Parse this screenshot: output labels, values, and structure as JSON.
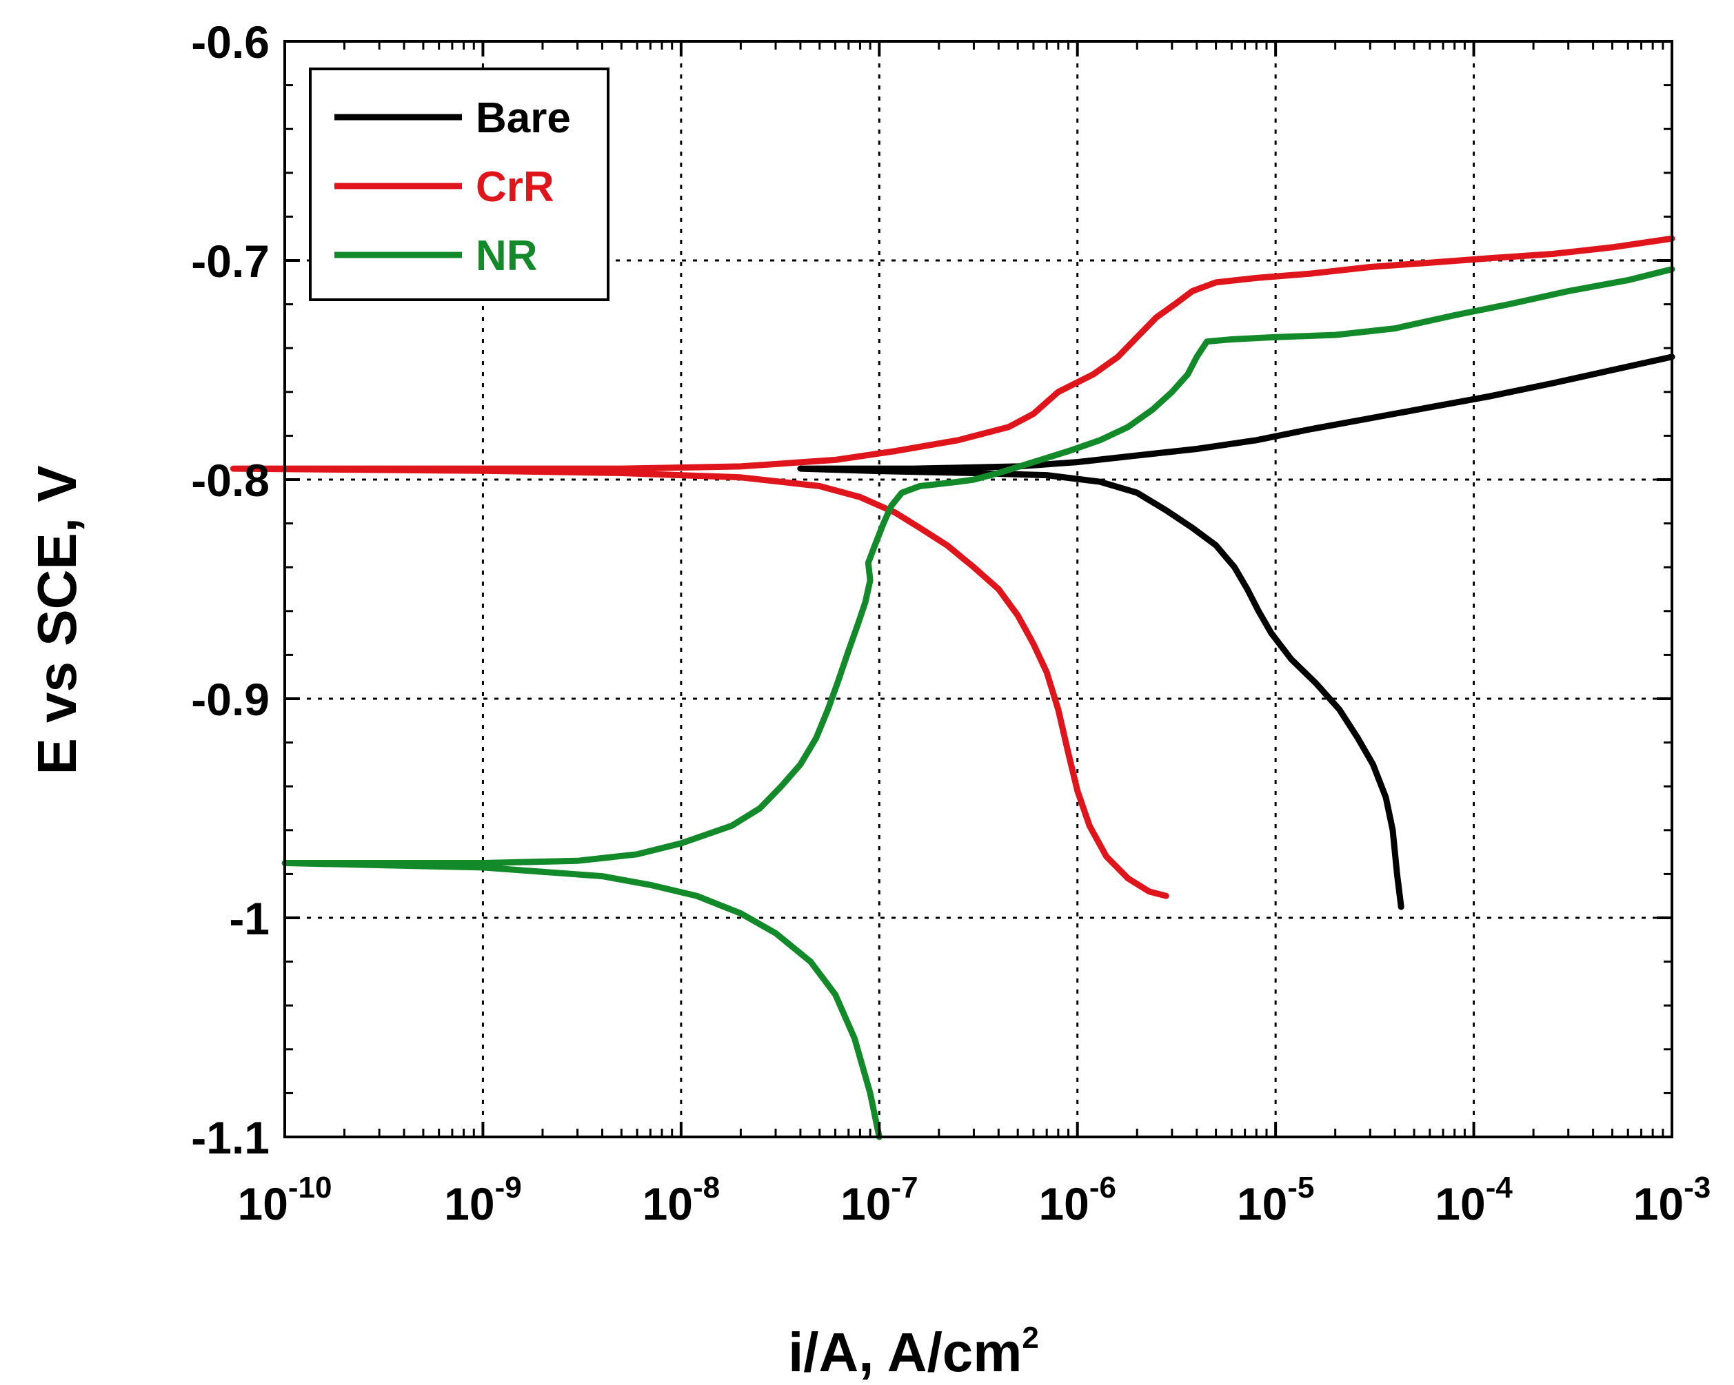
{
  "chart_data": {
    "type": "line",
    "title": "",
    "xlabel": "i/A, A/cm",
    "xlabel_superscript": "2",
    "ylabel": "E vs SCE, V",
    "x_scale": "log",
    "xlim": [
      1e-10,
      0.001
    ],
    "ylim": [
      -1.1,
      -0.6
    ],
    "grid": true,
    "legend_position": "top-left",
    "x_ticks": [
      {
        "value": 1e-10,
        "base": "10",
        "exp": "-10"
      },
      {
        "value": 1e-09,
        "base": "10",
        "exp": "-9"
      },
      {
        "value": 1e-08,
        "base": "10",
        "exp": "-8"
      },
      {
        "value": 1e-07,
        "base": "10",
        "exp": "-7"
      },
      {
        "value": 1e-06,
        "base": "10",
        "exp": "-6"
      },
      {
        "value": 1e-05,
        "base": "10",
        "exp": "-5"
      },
      {
        "value": 0.0001,
        "base": "10",
        "exp": "-4"
      },
      {
        "value": 0.001,
        "base": "10",
        "exp": "-3"
      }
    ],
    "y_ticks": [
      {
        "value": -0.6,
        "label": "-0.6"
      },
      {
        "value": -0.7,
        "label": "-0.7"
      },
      {
        "value": -0.8,
        "label": "-0.8"
      },
      {
        "value": -0.9,
        "label": "-0.9"
      },
      {
        "value": -1.0,
        "label": "-1"
      },
      {
        "value": -1.1,
        "label": "-1.1"
      }
    ],
    "series": [
      {
        "name": "Bare",
        "color": "#000000",
        "points": [
          [
            4.3e-05,
            -0.995
          ],
          [
            4.1e-05,
            -0.98
          ],
          [
            3.9e-05,
            -0.96
          ],
          [
            3.6e-05,
            -0.945
          ],
          [
            3.1e-05,
            -0.93
          ],
          [
            2.6e-05,
            -0.918
          ],
          [
            2.1e-05,
            -0.905
          ],
          [
            1.6e-05,
            -0.893
          ],
          [
            1.2e-05,
            -0.882
          ],
          [
            9.5e-06,
            -0.87
          ],
          [
            8.2e-06,
            -0.86
          ],
          [
            7.2e-06,
            -0.85
          ],
          [
            6.2e-06,
            -0.84
          ],
          [
            5e-06,
            -0.83
          ],
          [
            3.8e-06,
            -0.822
          ],
          [
            2.8e-06,
            -0.814
          ],
          [
            2e-06,
            -0.806
          ],
          [
            1.3e-06,
            -0.801
          ],
          [
            7e-07,
            -0.798
          ],
          [
            3e-07,
            -0.797
          ],
          [
            9e-08,
            -0.796
          ],
          [
            4e-08,
            -0.795
          ],
          [
            1.5e-07,
            -0.795
          ],
          [
            5e-07,
            -0.794
          ],
          [
            1e-06,
            -0.792
          ],
          [
            2e-06,
            -0.789
          ],
          [
            4e-06,
            -0.786
          ],
          [
            8e-06,
            -0.782
          ],
          [
            1.5e-05,
            -0.777
          ],
          [
            3e-05,
            -0.772
          ],
          [
            6e-05,
            -0.767
          ],
          [
            0.00012,
            -0.762
          ],
          [
            0.00025,
            -0.756
          ],
          [
            0.0005,
            -0.75
          ],
          [
            0.001,
            -0.744
          ]
        ]
      },
      {
        "name": "CrR",
        "color": "#e0151b",
        "points": [
          [
            2.8e-06,
            -0.99
          ],
          [
            2.3e-06,
            -0.988
          ],
          [
            1.8e-06,
            -0.982
          ],
          [
            1.4e-06,
            -0.972
          ],
          [
            1.15e-06,
            -0.958
          ],
          [
            1e-06,
            -0.942
          ],
          [
            9e-07,
            -0.925
          ],
          [
            8e-07,
            -0.905
          ],
          [
            7e-07,
            -0.888
          ],
          [
            6e-07,
            -0.875
          ],
          [
            5e-07,
            -0.862
          ],
          [
            4e-07,
            -0.85
          ],
          [
            3e-07,
            -0.84
          ],
          [
            2.2e-07,
            -0.83
          ],
          [
            1.6e-07,
            -0.822
          ],
          [
            1.2e-07,
            -0.815
          ],
          [
            8e-08,
            -0.808
          ],
          [
            5e-08,
            -0.803
          ],
          [
            2e-08,
            -0.799
          ],
          [
            5e-09,
            -0.797
          ],
          [
            1e-09,
            -0.796
          ],
          [
            5.5e-11,
            -0.795
          ],
          [
            5e-10,
            -0.795
          ],
          [
            5e-09,
            -0.795
          ],
          [
            2e-08,
            -0.794
          ],
          [
            6e-08,
            -0.791
          ],
          [
            1.2e-07,
            -0.787
          ],
          [
            2.5e-07,
            -0.782
          ],
          [
            4.5e-07,
            -0.776
          ],
          [
            6e-07,
            -0.77
          ],
          [
            8e-07,
            -0.76
          ],
          [
            1.2e-06,
            -0.752
          ],
          [
            1.6e-06,
            -0.744
          ],
          [
            2e-06,
            -0.735
          ],
          [
            2.5e-06,
            -0.726
          ],
          [
            3.1e-06,
            -0.72
          ],
          [
            3.8e-06,
            -0.714
          ],
          [
            5e-06,
            -0.71
          ],
          [
            8e-06,
            -0.708
          ],
          [
            1.5e-05,
            -0.706
          ],
          [
            3e-05,
            -0.703
          ],
          [
            6e-05,
            -0.701
          ],
          [
            0.00012,
            -0.699
          ],
          [
            0.00025,
            -0.697
          ],
          [
            0.0005,
            -0.694
          ],
          [
            0.001,
            -0.69
          ]
        ]
      },
      {
        "name": "NR",
        "color": "#138a2a",
        "points": [
          [
            1e-07,
            -1.1
          ],
          [
            9e-08,
            -1.08
          ],
          [
            7.5e-08,
            -1.055
          ],
          [
            6e-08,
            -1.035
          ],
          [
            4.5e-08,
            -1.02
          ],
          [
            3e-08,
            -1.007
          ],
          [
            2e-08,
            -0.998
          ],
          [
            1.2e-08,
            -0.99
          ],
          [
            7e-09,
            -0.985
          ],
          [
            4e-09,
            -0.981
          ],
          [
            2e-09,
            -0.979
          ],
          [
            1e-09,
            -0.977
          ],
          [
            1e-10,
            -0.975
          ],
          [
            1e-09,
            -0.975
          ],
          [
            3e-09,
            -0.974
          ],
          [
            6e-09,
            -0.971
          ],
          [
            1e-08,
            -0.966
          ],
          [
            1.8e-08,
            -0.958
          ],
          [
            2.5e-08,
            -0.95
          ],
          [
            3.2e-08,
            -0.94
          ],
          [
            4e-08,
            -0.93
          ],
          [
            4.8e-08,
            -0.918
          ],
          [
            5.5e-08,
            -0.905
          ],
          [
            6.2e-08,
            -0.892
          ],
          [
            7e-08,
            -0.878
          ],
          [
            7.8e-08,
            -0.866
          ],
          [
            8.5e-08,
            -0.856
          ],
          [
            9e-08,
            -0.846
          ],
          [
            8.8e-08,
            -0.838
          ],
          [
            9.5e-08,
            -0.83
          ],
          [
            1.05e-07,
            -0.82
          ],
          [
            1.15e-07,
            -0.812
          ],
          [
            1.3e-07,
            -0.806
          ],
          [
            1.6e-07,
            -0.803
          ],
          [
            2e-07,
            -0.802
          ],
          [
            2.5e-07,
            -0.801
          ],
          [
            3e-07,
            -0.8
          ],
          [
            4e-07,
            -0.797
          ],
          [
            6e-07,
            -0.792
          ],
          [
            9e-07,
            -0.787
          ],
          [
            1.3e-06,
            -0.782
          ],
          [
            1.8e-06,
            -0.776
          ],
          [
            2.4e-06,
            -0.768
          ],
          [
            3e-06,
            -0.76
          ],
          [
            3.6e-06,
            -0.752
          ],
          [
            4e-06,
            -0.744
          ],
          [
            4.5e-06,
            -0.737
          ],
          [
            6e-06,
            -0.736
          ],
          [
            1e-05,
            -0.735
          ],
          [
            2e-05,
            -0.734
          ],
          [
            4e-05,
            -0.731
          ],
          [
            8e-05,
            -0.725
          ],
          [
            0.00015,
            -0.72
          ],
          [
            0.0003,
            -0.714
          ],
          [
            0.0006,
            -0.709
          ],
          [
            0.001,
            -0.704
          ]
        ]
      }
    ]
  }
}
